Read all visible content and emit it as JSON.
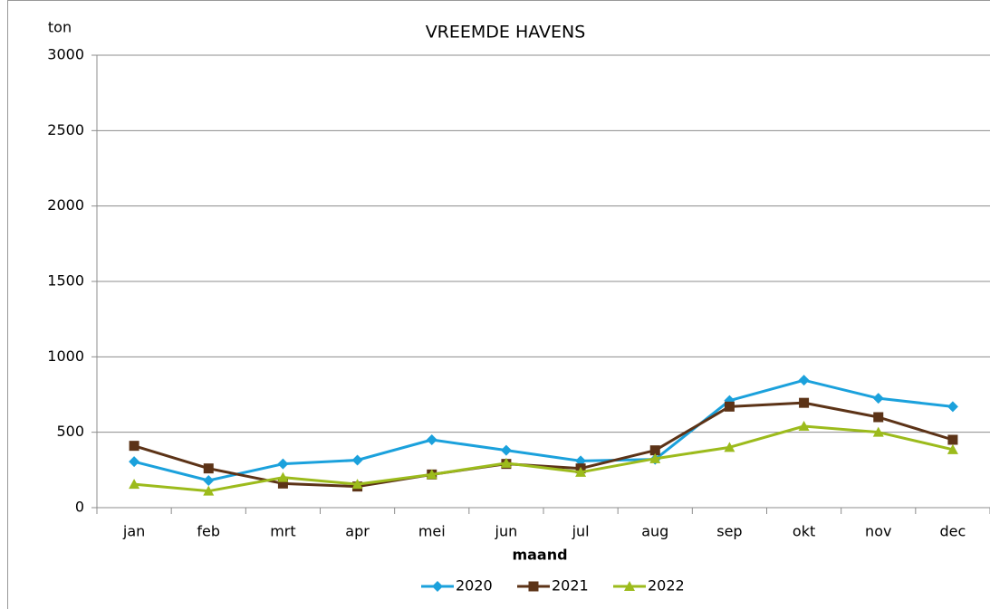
{
  "chart_data": {
    "type": "line",
    "title": "VREEMDE HAVENS",
    "y_label": "ton",
    "x_label": "maand",
    "categories": [
      "jan",
      "feb",
      "mrt",
      "apr",
      "mei",
      "jun",
      "jul",
      "aug",
      "sep",
      "okt",
      "nov",
      "dec"
    ],
    "series": [
      {
        "name": "2020",
        "color": "#1ba1dc",
        "marker": "diamond",
        "values": [
          305,
          180,
          290,
          315,
          450,
          380,
          310,
          320,
          710,
          845,
          725,
          670
        ]
      },
      {
        "name": "2021",
        "color": "#5c3317",
        "marker": "square",
        "values": [
          410,
          260,
          160,
          140,
          220,
          290,
          260,
          380,
          670,
          695,
          600,
          450
        ]
      },
      {
        "name": "2022",
        "color": "#9cbb1c",
        "marker": "triangle",
        "values": [
          155,
          110,
          200,
          155,
          220,
          295,
          235,
          325,
          400,
          540,
          500,
          385
        ]
      }
    ],
    "ylim": [
      0,
      3000
    ],
    "yticks": [
      0,
      500,
      1000,
      1500,
      2000,
      2500,
      3000
    ],
    "grid": true,
    "legend": "bottom"
  }
}
